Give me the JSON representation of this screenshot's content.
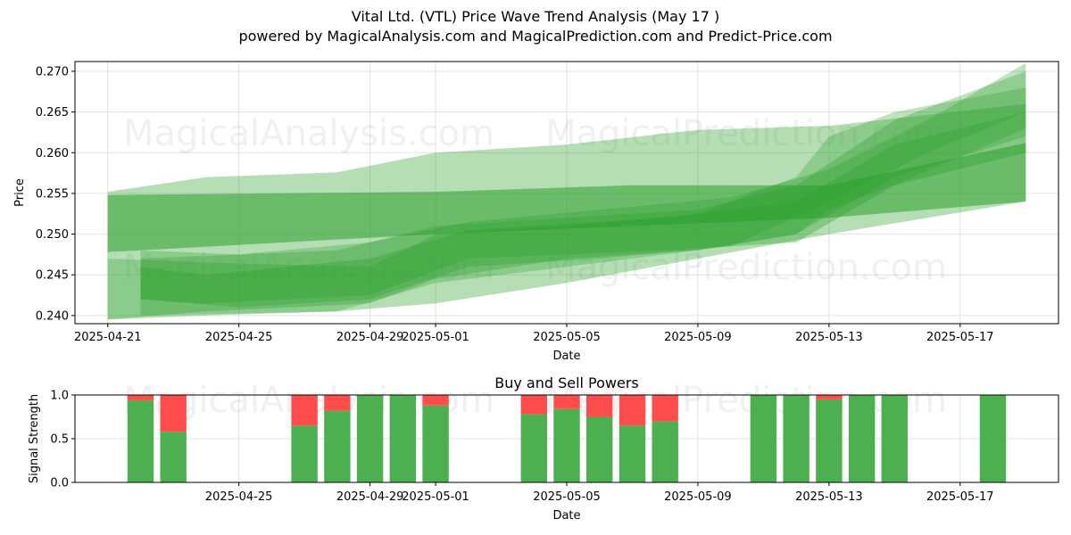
{
  "title": "Vital Ltd. (VTL) Price Wave Trend Analysis (May 17 )",
  "subtitle": "powered by MagicalAnalysis.com and MagicalPrediction.com and Predict-Price.com",
  "watermarks": [
    "MagicalAnalysis.com",
    "MagicalPrediction.com"
  ],
  "colors": {
    "band": "#2ca02c",
    "buy": "#4caf50",
    "sell": "#ff4d4d",
    "grid": "#e0e0e0"
  },
  "chart_data": [
    {
      "type": "area",
      "xlabel": "Date",
      "ylabel": "Price",
      "xlim": [
        "2025-04-20",
        "2025-05-20"
      ],
      "ylim": [
        0.239,
        0.2712
      ],
      "x_ticks": [
        "2025-04-21",
        "2025-04-25",
        "2025-04-29",
        "2025-05-01",
        "2025-05-05",
        "2025-05-09",
        "2025-05-13",
        "2025-05-17"
      ],
      "y_ticks": [
        0.24,
        0.245,
        0.25,
        0.255,
        0.26,
        0.265,
        0.27
      ],
      "grid": true,
      "series": [
        {
          "opacity": 0.35,
          "x": [
            "2025-04-21",
            "2025-04-24",
            "2025-04-28",
            "2025-05-01",
            "2025-05-05",
            "2025-05-09",
            "2025-05-13",
            "2025-05-19"
          ],
          "upper": [
            0.2552,
            0.257,
            0.2576,
            0.26,
            0.261,
            0.2628,
            0.2633,
            0.266
          ],
          "lower": [
            0.2395,
            0.24,
            0.2405,
            0.2415,
            0.244,
            0.247,
            0.25,
            0.254
          ]
        },
        {
          "opacity": 0.55,
          "x": [
            "2025-04-21",
            "2025-05-01",
            "2025-05-07",
            "2025-05-13",
            "2025-05-19"
          ],
          "upper": [
            0.2548,
            0.2552,
            0.256,
            0.256,
            0.2612
          ],
          "lower": [
            0.2478,
            0.25,
            0.251,
            0.252,
            0.254
          ]
        },
        {
          "opacity": 0.3,
          "x": [
            "2025-04-21",
            "2025-04-24",
            "2025-04-29",
            "2025-05-01",
            "2025-05-05",
            "2025-05-09",
            "2025-05-12",
            "2025-05-13",
            "2025-05-15",
            "2025-05-19"
          ],
          "upper": [
            0.247,
            0.2465,
            0.246,
            0.25,
            0.251,
            0.2525,
            0.257,
            0.262,
            0.265,
            0.268
          ],
          "lower": [
            0.2395,
            0.2405,
            0.2415,
            0.2445,
            0.247,
            0.248,
            0.25,
            0.253,
            0.256,
            0.263
          ]
        },
        {
          "opacity": 0.3,
          "x": [
            "2025-04-22",
            "2025-04-25",
            "2025-04-29",
            "2025-05-02",
            "2025-05-06",
            "2025-05-10",
            "2025-05-13",
            "2025-05-16",
            "2025-05-19"
          ],
          "upper": [
            0.248,
            0.2475,
            0.249,
            0.2515,
            0.253,
            0.2545,
            0.258,
            0.264,
            0.271
          ],
          "lower": [
            0.242,
            0.241,
            0.242,
            0.246,
            0.247,
            0.2485,
            0.254,
            0.26,
            0.265
          ]
        },
        {
          "opacity": 0.3,
          "x": [
            "2025-04-22",
            "2025-04-28",
            "2025-05-01",
            "2025-05-05",
            "2025-05-09",
            "2025-05-12",
            "2025-05-15",
            "2025-05-19"
          ],
          "upper": [
            0.247,
            0.248,
            0.251,
            0.252,
            0.253,
            0.256,
            0.264,
            0.27
          ],
          "lower": [
            0.24,
            0.2405,
            0.244,
            0.246,
            0.248,
            0.25,
            0.257,
            0.262
          ]
        },
        {
          "opacity": 0.35,
          "x": [
            "2025-04-22",
            "2025-04-24",
            "2025-04-29",
            "2025-05-02",
            "2025-05-08",
            "2025-05-12",
            "2025-05-15",
            "2025-05-19"
          ],
          "upper": [
            0.246,
            0.245,
            0.247,
            0.2505,
            0.252,
            0.254,
            0.261,
            0.265
          ],
          "lower": [
            0.242,
            0.2415,
            0.2425,
            0.247,
            0.248,
            0.249,
            0.256,
            0.26
          ]
        }
      ]
    },
    {
      "type": "bar",
      "title": "Buy and Sell Powers",
      "xlabel": "Date",
      "ylabel": "Signal Strength",
      "xlim": [
        "2025-04-20",
        "2025-05-20"
      ],
      "ylim": [
        0.0,
        1.0
      ],
      "x_ticks": [
        "2025-04-25",
        "2025-04-29",
        "2025-05-01",
        "2025-05-05",
        "2025-05-09",
        "2025-05-13",
        "2025-05-17"
      ],
      "y_ticks": [
        0.0,
        0.5,
        1.0
      ],
      "grid": true,
      "dates": [
        "2025-04-22",
        "2025-04-23",
        "2025-04-27",
        "2025-04-28",
        "2025-04-29",
        "2025-04-30",
        "2025-05-01",
        "2025-05-04",
        "2025-05-05",
        "2025-05-06",
        "2025-05-07",
        "2025-05-08",
        "2025-05-11",
        "2025-05-12",
        "2025-05-13",
        "2025-05-14",
        "2025-05-15",
        "2025-05-18"
      ],
      "series": [
        {
          "name": "buy",
          "values": [
            0.94,
            0.58,
            0.65,
            0.82,
            1.0,
            1.0,
            0.88,
            0.78,
            0.84,
            0.75,
            0.65,
            0.7,
            1.0,
            1.0,
            0.95,
            1.0,
            1.0,
            1.0
          ]
        },
        {
          "name": "sell",
          "values": [
            0.06,
            0.42,
            0.35,
            0.18,
            0.0,
            0.0,
            0.12,
            0.22,
            0.16,
            0.25,
            0.35,
            0.3,
            0.0,
            0.0,
            0.05,
            0.0,
            0.0,
            0.0
          ]
        }
      ]
    }
  ]
}
